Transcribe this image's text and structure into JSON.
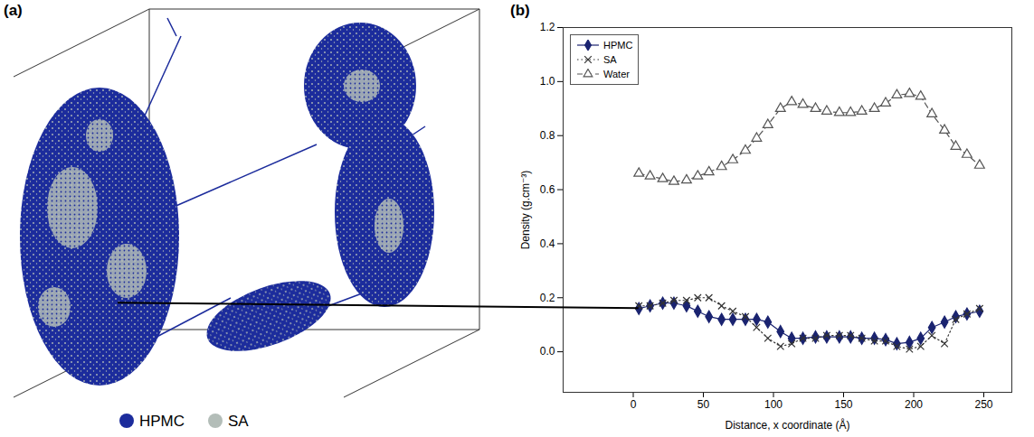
{
  "panel_a": {
    "label": "(a)",
    "legend": [
      {
        "name": "HPMC",
        "color": "#1c2c9c"
      },
      {
        "name": "SA",
        "color": "#b3bdb8"
      }
    ]
  },
  "chart_data": {
    "type": "line",
    "annotation": "(b)",
    "x_label": "Distance, x coordinate (Å)",
    "y_label": "Density (g.cm⁻³)",
    "x": [
      4,
      12,
      21,
      29,
      38,
      46,
      54,
      63,
      71,
      80,
      88,
      96,
      105,
      113,
      121,
      130,
      138,
      147,
      155,
      163,
      172,
      180,
      188,
      197,
      205,
      213,
      222,
      230,
      238,
      247
    ],
    "series": [
      {
        "name": "HPMC",
        "color": "#1a2370",
        "marker": "diamond",
        "line_style": "solid",
        "values": [
          0.16,
          0.17,
          0.18,
          0.18,
          0.17,
          0.15,
          0.13,
          0.12,
          0.12,
          0.12,
          0.12,
          0.11,
          0.075,
          0.05,
          0.05,
          0.055,
          0.055,
          0.055,
          0.055,
          0.05,
          0.05,
          0.045,
          0.03,
          0.035,
          0.05,
          0.09,
          0.11,
          0.13,
          0.14,
          0.15
        ]
      },
      {
        "name": "SA",
        "color": "#333333",
        "marker": "x",
        "line_style": "dotted",
        "values": [
          0.17,
          0.17,
          0.18,
          0.19,
          0.19,
          0.2,
          0.2,
          0.17,
          0.15,
          0.13,
          0.09,
          0.05,
          0.02,
          0.03,
          0.05,
          0.05,
          0.06,
          0.06,
          0.06,
          0.05,
          0.04,
          0.04,
          0.02,
          0.01,
          0.02,
          0.06,
          0.03,
          0.12,
          0.14,
          0.16
        ]
      },
      {
        "name": "Water",
        "color": "#555555",
        "marker": "open_triangle",
        "line_style": "dashed",
        "values": [
          0.66,
          0.65,
          0.64,
          0.63,
          0.635,
          0.65,
          0.665,
          0.685,
          0.71,
          0.745,
          0.79,
          0.84,
          0.9,
          0.925,
          0.915,
          0.9,
          0.89,
          0.885,
          0.885,
          0.89,
          0.9,
          0.92,
          0.95,
          0.955,
          0.945,
          0.88,
          0.82,
          0.76,
          0.73,
          0.69
        ]
      }
    ],
    "xlim": [
      -50,
      270
    ],
    "xticks": [
      0,
      50,
      100,
      150,
      200,
      250
    ],
    "ylim": [
      -0.15,
      1.2
    ],
    "yticks": [
      {
        "value": 0,
        "label": "0.0"
      },
      {
        "value": 0.2,
        "label": "0.2"
      },
      {
        "value": 0.4,
        "label": "0.4"
      },
      {
        "value": 0.6,
        "label": "0.6"
      },
      {
        "value": 0.8,
        "label": "0.8"
      },
      {
        "value": 1,
        "label": "1.0"
      },
      {
        "value": 1.2,
        "label": "1.2"
      }
    ],
    "legend": "top-left",
    "grid": false
  }
}
